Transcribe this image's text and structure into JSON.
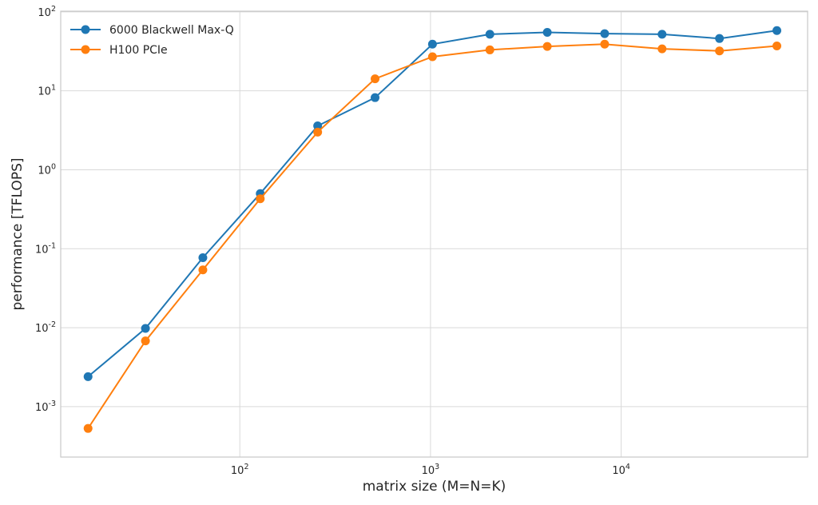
{
  "chart_data": {
    "type": "line",
    "xscale": "log",
    "yscale": "log",
    "xlabel": "matrix size (M=N=K)",
    "ylabel": "performance [TFLOPS]",
    "xlim": [
      11.5,
      95000
    ],
    "ylim": [
      0.00023,
      102
    ],
    "x_ticks": [
      {
        "value": 100,
        "base": "10",
        "exp": "2"
      },
      {
        "value": 1000,
        "base": "10",
        "exp": "3"
      },
      {
        "value": 10000,
        "base": "10",
        "exp": "4"
      }
    ],
    "y_ticks": [
      {
        "value": 0.001,
        "base": "10",
        "exp": "-3"
      },
      {
        "value": 0.01,
        "base": "10",
        "exp": "-2"
      },
      {
        "value": 0.1,
        "base": "10",
        "exp": "-1"
      },
      {
        "value": 1,
        "base": "10",
        "exp": "0"
      },
      {
        "value": 10,
        "base": "10",
        "exp": "1"
      },
      {
        "value": 100,
        "base": "10",
        "exp": "2"
      }
    ],
    "grid": true,
    "legend_position": "top-left",
    "x": [
      16,
      32,
      64,
      128,
      256,
      512,
      1024,
      2048,
      4096,
      8192,
      16384,
      32768,
      65536
    ],
    "series": [
      {
        "name": "6000 Blackwell Max-Q",
        "color": "#1f77b4",
        "values": [
          0.0024,
          0.0098,
          0.077,
          0.5,
          3.6,
          8.2,
          39,
          52,
          55,
          53,
          52,
          46,
          58
        ]
      },
      {
        "name": "H100 PCIe",
        "color": "#ff7f0e",
        "values": [
          0.00053,
          0.0068,
          0.054,
          0.43,
          3.0,
          14.2,
          27,
          33,
          36.5,
          39,
          34,
          32,
          37
        ]
      }
    ]
  }
}
